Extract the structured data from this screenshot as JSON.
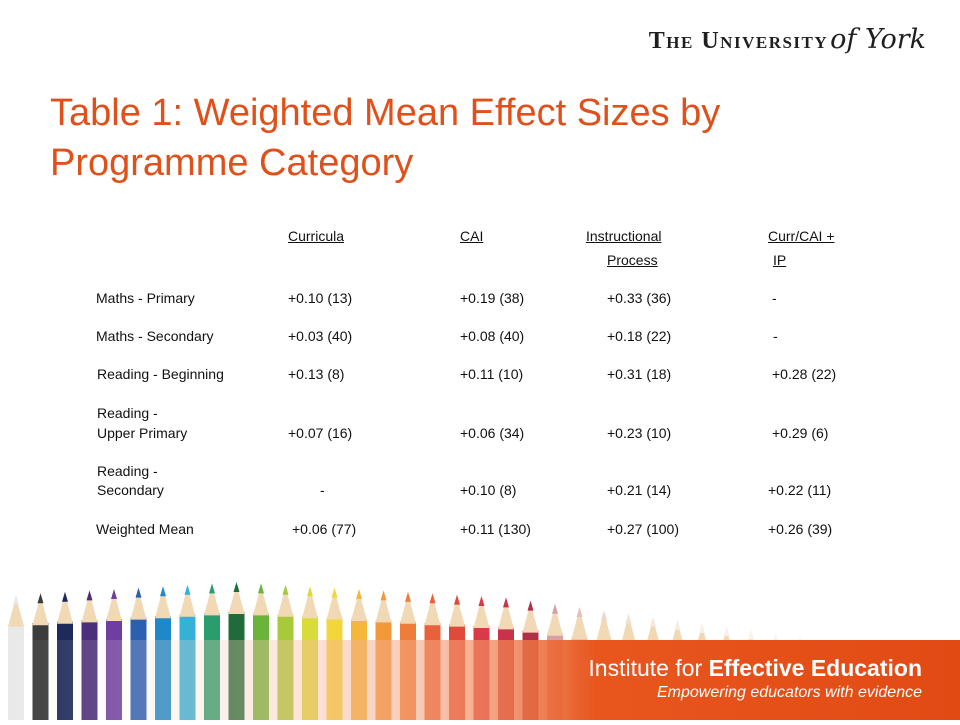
{
  "logo": {
    "text_caps": "The University",
    "text_script": "of York"
  },
  "title": "Table 1: Weighted Mean Effect Sizes by Programme Category",
  "table": {
    "headers": [
      {
        "line1": "Curricula",
        "line2": ""
      },
      {
        "line1": "CAI",
        "line2": ""
      },
      {
        "line1": "Instructional",
        "line2": "Process"
      },
      {
        "line1": "Curr/CAI +",
        "line2": "IP"
      }
    ],
    "rows": [
      {
        "label_line1": "Maths - Primary",
        "label_line2": "",
        "values": [
          "+0.10 (13)",
          "+0.19 (38)",
          "+0.33 (36)",
          "-"
        ]
      },
      {
        "label_line1": "Maths - Secondary",
        "label_line2": "",
        "values": [
          "+0.03 (40)",
          "+0.08 (40)",
          "+0.18 (22)",
          "-"
        ]
      },
      {
        "label_line1": "Reading - Beginning",
        "label_line2": "",
        "values": [
          "+0.13 (8)",
          "+0.11 (10)",
          "+0.31 (18)",
          "+0.28 (22)"
        ]
      },
      {
        "label_line1": "Reading -",
        "label_line2": "Upper Primary",
        "values": [
          "+0.07 (16)",
          "+0.06 (34)",
          "+0.23 (10)",
          "+0.29 (6)"
        ]
      },
      {
        "label_line1": "Reading -",
        "label_line2": "Secondary",
        "values": [
          "-",
          "+0.10 (8)",
          "+0.21 (14)",
          "+0.22 (11)"
        ]
      },
      {
        "label_line1": "Weighted Mean",
        "label_line2": "",
        "values": [
          "+0.06 (77)",
          "+0.11 (130)",
          "+0.27 (100)",
          "+0.26 (39)"
        ]
      }
    ]
  },
  "banner": {
    "line1_normal": "Institute for ",
    "line1_bold": "Effective Education",
    "line2": "Empowering educators with evidence"
  },
  "colors": {
    "title": "#e0501a",
    "banner_orange": "#e8561e"
  }
}
